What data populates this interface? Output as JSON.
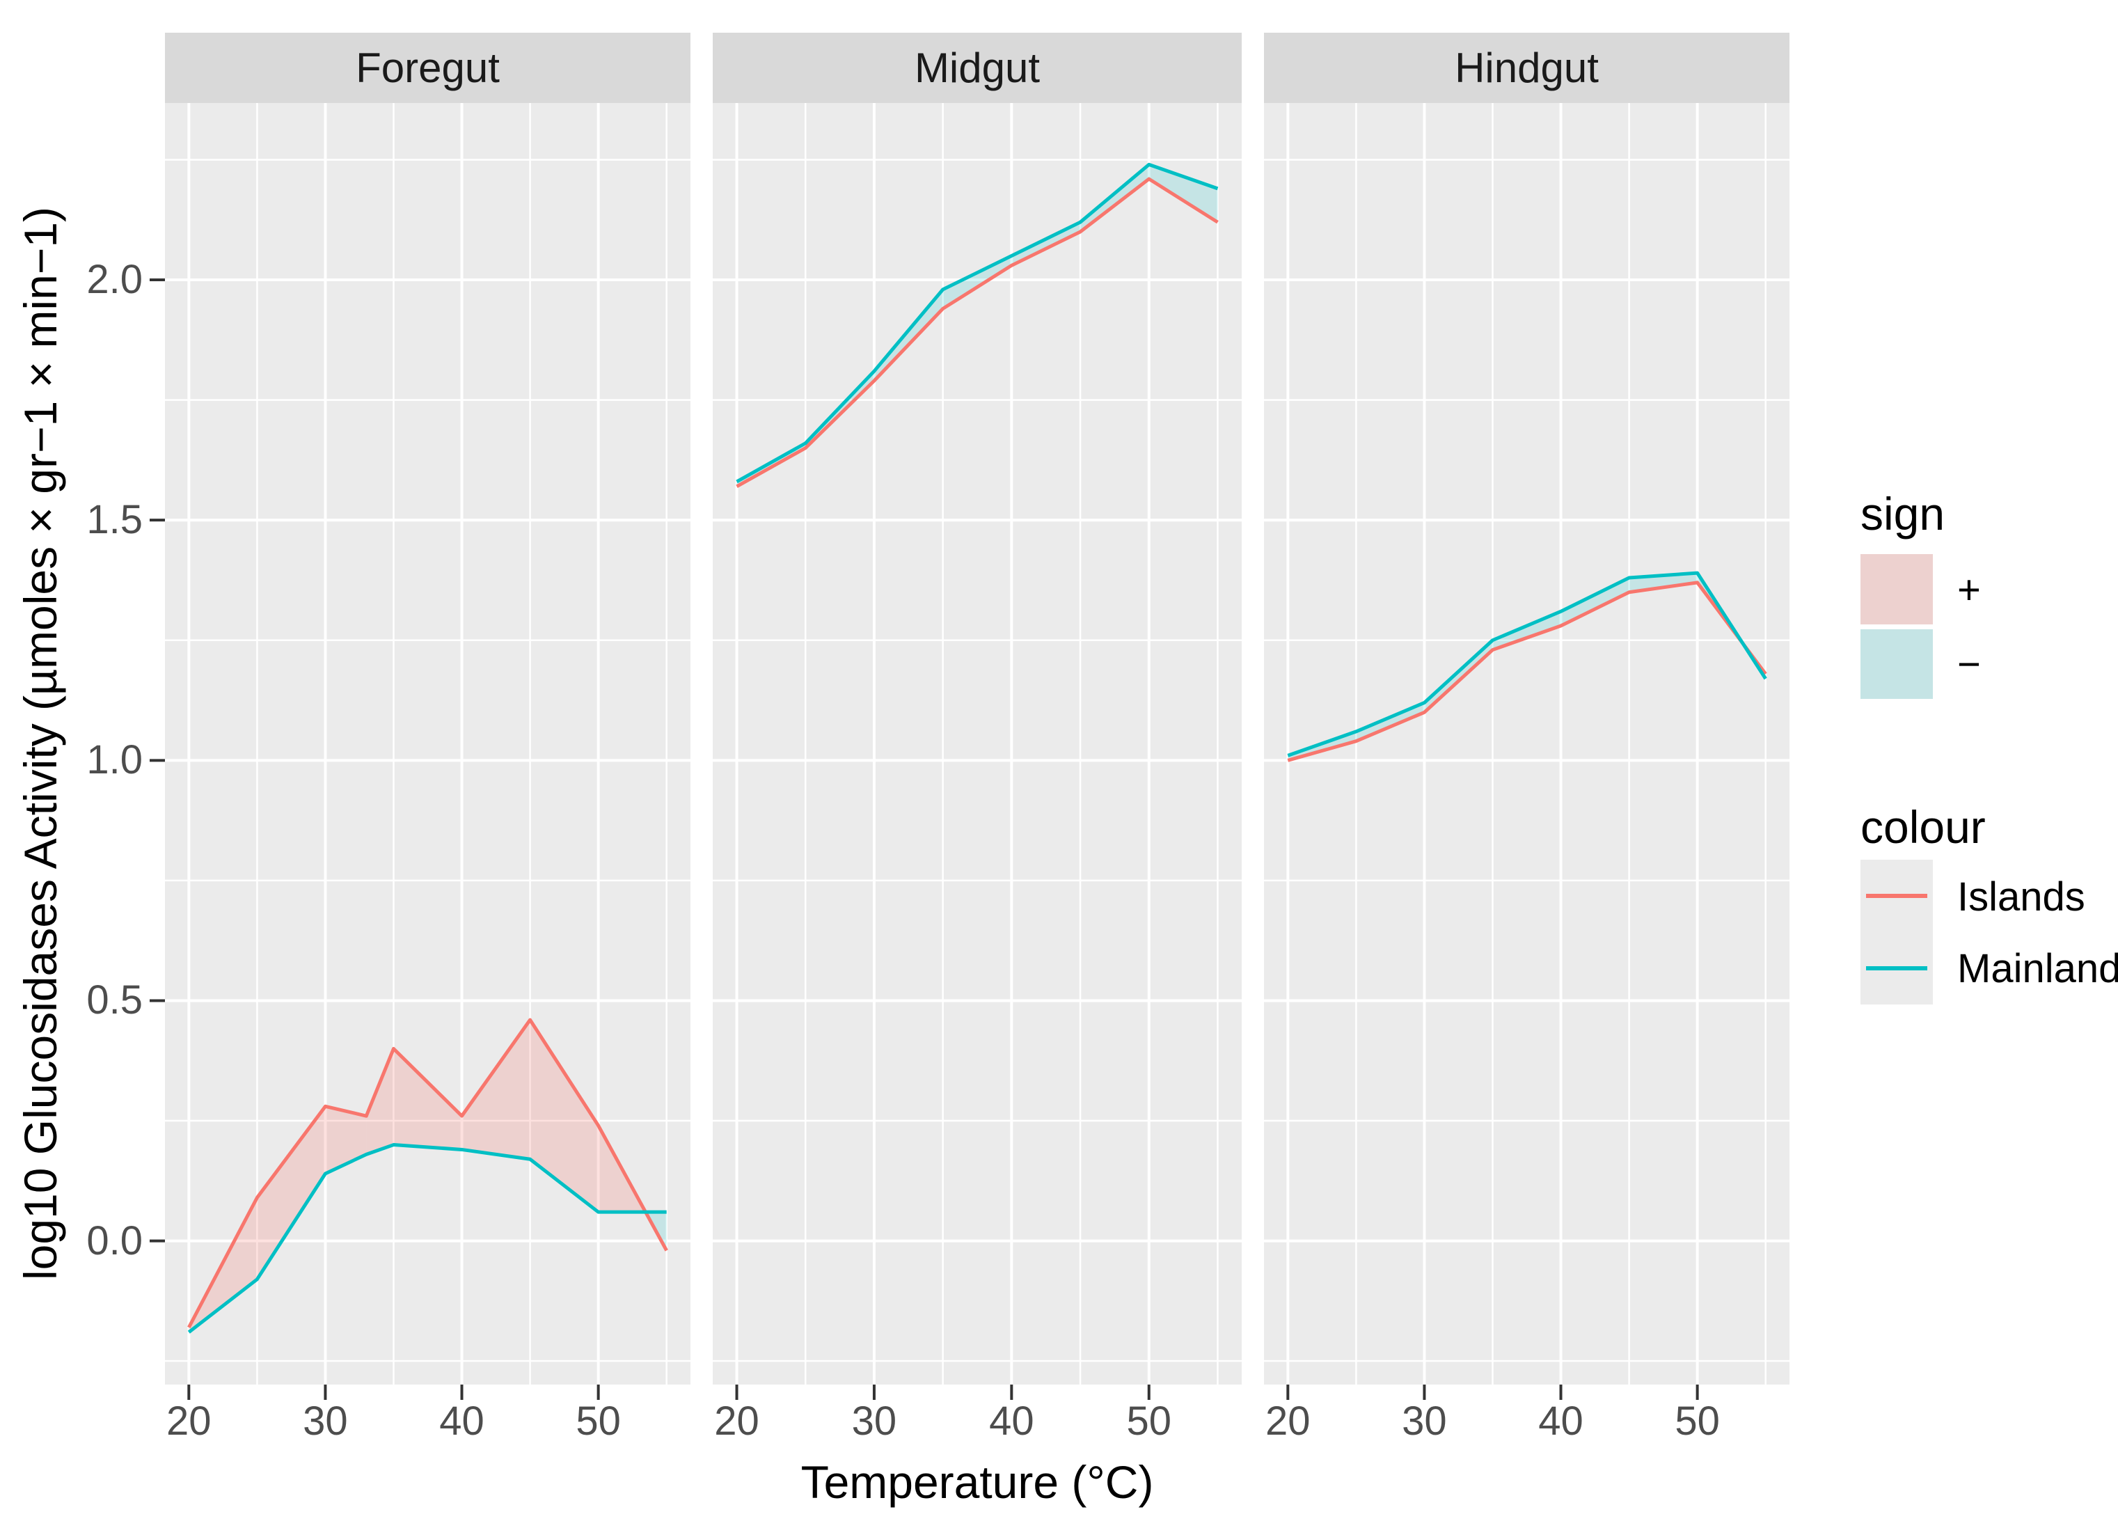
{
  "chart_data": {
    "type": "line",
    "title": "",
    "xlabel": "Temperature (°C)",
    "ylabel": "log10 Glucosidases Activity (µmoles × gr−1 × min−1)",
    "xlim": [
      18.25,
      56.75
    ],
    "ylim": [
      -0.3,
      2.37
    ],
    "grid": "on",
    "legend_position": "right",
    "x_ticks": [
      20,
      30,
      40,
      50
    ],
    "x_tick_labels": [
      "20",
      "30",
      "40",
      "50"
    ],
    "y_ticks": [
      0.0,
      0.5,
      1.0,
      1.5,
      2.0
    ],
    "y_tick_labels": [
      "0.0",
      "0.5",
      "1.0",
      "1.5",
      "2.0"
    ],
    "x_gridlines_minor": [
      25,
      35,
      45,
      55
    ],
    "y_gridlines_minor": [
      -0.25,
      0.25,
      0.75,
      1.25,
      1.75,
      2.25
    ],
    "facets": [
      {
        "label": "Foregut",
        "x": [
          20,
          25,
          30,
          33,
          35,
          40,
          45,
          50,
          55
        ],
        "series": [
          {
            "name": "Islands",
            "values": [
              -0.18,
              0.09,
              0.28,
              0.26,
              0.4,
              0.26,
              0.46,
              0.24,
              -0.02
            ]
          },
          {
            "name": "Mainland",
            "values": [
              -0.19,
              -0.08,
              0.14,
              0.18,
              0.2,
              0.19,
              0.17,
              0.06,
              0.06
            ]
          }
        ]
      },
      {
        "label": "Midgut",
        "x": [
          20,
          25,
          30,
          35,
          40,
          45,
          50,
          55
        ],
        "series": [
          {
            "name": "Islands",
            "values": [
              1.57,
              1.65,
              1.79,
              1.94,
              2.03,
              2.1,
              2.21,
              2.12
            ]
          },
          {
            "name": "Mainland",
            "values": [
              1.58,
              1.66,
              1.81,
              1.98,
              2.05,
              2.12,
              2.24,
              2.19
            ]
          }
        ]
      },
      {
        "label": "Hindgut",
        "x": [
          20,
          25,
          30,
          35,
          40,
          45,
          50,
          55
        ],
        "series": [
          {
            "name": "Islands",
            "values": [
              1.0,
              1.04,
              1.1,
              1.23,
              1.28,
              1.35,
              1.37,
              1.18
            ]
          },
          {
            "name": "Mainland",
            "values": [
              1.01,
              1.06,
              1.12,
              1.25,
              1.31,
              1.38,
              1.39,
              1.17
            ]
          }
        ]
      }
    ]
  },
  "legend": {
    "sign_title": "sign",
    "plus_label": "+",
    "minus_label": "−",
    "colour_title": "colour",
    "items": [
      {
        "label": "Islands",
        "color": "#F8766D"
      },
      {
        "label": "Mainland",
        "color": "#00BFC4"
      }
    ]
  },
  "colors": {
    "islands": "#F8766D",
    "mainland": "#00BFC4",
    "ribbon_positive": "rgba(248,118,109,0.22)",
    "ribbon_negative": "rgba(0,191,196,0.16)",
    "panel_bg": "#EBEBEB",
    "strip_bg": "#D9D9D9",
    "grid": "#FFFFFF",
    "tick_text": "#4D4D4D",
    "tick_mark": "#333333"
  }
}
